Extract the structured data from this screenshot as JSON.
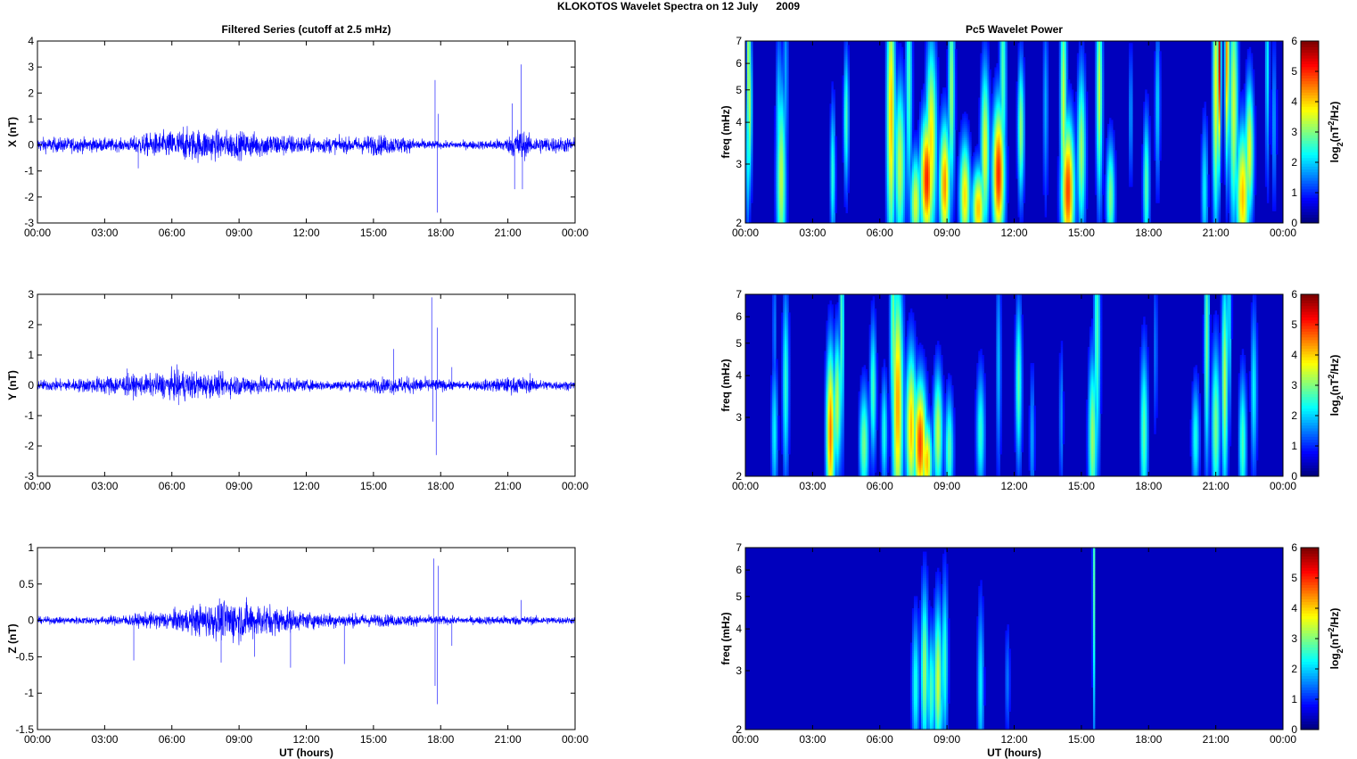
{
  "figure": {
    "title": "KLOKOTOS Wavelet Spectra on 12 July      2009"
  },
  "chart_data": [
    {
      "type": "line",
      "title": "Filtered Series (cutoff at 2.5 mHz)",
      "ylabel": "X (nT)",
      "xlabel": "",
      "xlim": [
        0,
        24
      ],
      "ylim": [
        -3,
        4
      ],
      "xticklabels": [
        "00:00",
        "03:00",
        "06:00",
        "09:00",
        "12:00",
        "15:00",
        "18:00",
        "21:00",
        "00:00"
      ],
      "yticks": [
        -3,
        -2,
        -1,
        0,
        1,
        2,
        3,
        4
      ],
      "line_color": "#0000ff",
      "envelope": [
        [
          0,
          0.25
        ],
        [
          2,
          0.25
        ],
        [
          4,
          0.2
        ],
        [
          4.5,
          0.35
        ],
        [
          6.2,
          0.5
        ],
        [
          7,
          0.55
        ],
        [
          9,
          0.45
        ],
        [
          10.5,
          0.4
        ],
        [
          12,
          0.3
        ],
        [
          14,
          0.25
        ],
        [
          15,
          0.35
        ],
        [
          16,
          0.3
        ],
        [
          17.5,
          0.15
        ],
        [
          18,
          0.12
        ],
        [
          20,
          0.15
        ],
        [
          21,
          0.25
        ],
        [
          21.5,
          0.6
        ],
        [
          22,
          0.3
        ],
        [
          24,
          0.25
        ]
      ],
      "spikes": [
        [
          4.5,
          -0.9
        ],
        [
          6.5,
          0.7
        ],
        [
          17.75,
          2.5
        ],
        [
          17.85,
          -2.6
        ],
        [
          17.9,
          1.2
        ],
        [
          21.2,
          1.6
        ],
        [
          21.3,
          -1.7
        ],
        [
          21.6,
          3.1
        ],
        [
          21.65,
          -1.7
        ],
        [
          24,
          0.5
        ]
      ]
    },
    {
      "type": "line",
      "ylabel": "Y (nT)",
      "xlabel": "",
      "xlim": [
        0,
        24
      ],
      "ylim": [
        -3,
        3
      ],
      "xticklabels": [
        "00:00",
        "03:00",
        "06:00",
        "09:00",
        "12:00",
        "15:00",
        "18:00",
        "21:00",
        "00:00"
      ],
      "yticks": [
        -3,
        -2,
        -1,
        0,
        1,
        2,
        3
      ],
      "line_color": "#0000ff",
      "envelope": [
        [
          0,
          0.15
        ],
        [
          2,
          0.2
        ],
        [
          3.5,
          0.3
        ],
        [
          5,
          0.3
        ],
        [
          6.5,
          0.45
        ],
        [
          7.5,
          0.35
        ],
        [
          9,
          0.3
        ],
        [
          10.5,
          0.25
        ],
        [
          12,
          0.15
        ],
        [
          14,
          0.15
        ],
        [
          15,
          0.2
        ],
        [
          16,
          0.25
        ],
        [
          17.5,
          0.2
        ],
        [
          19,
          0.1
        ],
        [
          20.5,
          0.2
        ],
        [
          21.5,
          0.25
        ],
        [
          22.5,
          0.15
        ],
        [
          24,
          0.12
        ]
      ],
      "spikes": [
        [
          4.0,
          0.55
        ],
        [
          6.3,
          -0.65
        ],
        [
          15.9,
          1.2
        ],
        [
          17.6,
          2.9
        ],
        [
          17.65,
          -1.2
        ],
        [
          17.8,
          -2.3
        ],
        [
          17.85,
          1.9
        ],
        [
          18.5,
          0.6
        ],
        [
          22,
          0.4
        ]
      ]
    },
    {
      "type": "line",
      "ylabel": "Z (nT)",
      "xlabel": "UT (hours)",
      "xlim": [
        0,
        24
      ],
      "ylim": [
        -1.5,
        1
      ],
      "xticklabels": [
        "00:00",
        "03:00",
        "06:00",
        "09:00",
        "12:00",
        "15:00",
        "18:00",
        "21:00",
        "00:00"
      ],
      "yticks": [
        -1.5,
        -1,
        -0.5,
        0,
        0.5,
        1
      ],
      "yticklabels": [
        "-1.5",
        "-1",
        "-0.5",
        "0",
        "0.5",
        "1"
      ],
      "line_color": "#0000ff",
      "envelope": [
        [
          0,
          0.04
        ],
        [
          3,
          0.05
        ],
        [
          4.5,
          0.08
        ],
        [
          6,
          0.12
        ],
        [
          7.5,
          0.2
        ],
        [
          8.7,
          0.26
        ],
        [
          10,
          0.2
        ],
        [
          11,
          0.15
        ],
        [
          12,
          0.1
        ],
        [
          14,
          0.08
        ],
        [
          16,
          0.07
        ],
        [
          17.5,
          0.06
        ],
        [
          19,
          0.04
        ],
        [
          21,
          0.06
        ],
        [
          22,
          0.05
        ],
        [
          24,
          0.04
        ]
      ],
      "spikes": [
        [
          4.3,
          -0.55
        ],
        [
          8.2,
          -0.58
        ],
        [
          9.7,
          -0.5
        ],
        [
          11.3,
          -0.65
        ],
        [
          13.7,
          -0.6
        ],
        [
          17.7,
          0.85
        ],
        [
          17.75,
          -0.9
        ],
        [
          17.85,
          -1.15
        ],
        [
          17.9,
          0.75
        ],
        [
          18.5,
          -0.35
        ],
        [
          21.6,
          0.28
        ]
      ]
    },
    {
      "type": "heatmap",
      "title": "Pc5 Wavelet Power",
      "ylabel": "freq (mHz)",
      "xlabel": "",
      "xlim": [
        0,
        24
      ],
      "ylim": [
        2,
        7
      ],
      "yscale": "log",
      "yticks": [
        2,
        3,
        4,
        5,
        6,
        7
      ],
      "xticklabels": [
        "00:00",
        "03:00",
        "06:00",
        "09:00",
        "12:00",
        "15:00",
        "18:00",
        "21:00",
        "00:00"
      ],
      "colorbar": {
        "label": "log2(nT2/Hz)",
        "ticks": [
          0,
          1,
          2,
          3,
          4,
          5,
          6
        ],
        "range": [
          0,
          6
        ],
        "colormap": "jet"
      },
      "blobs": [
        [
          0.15,
          6.2,
          3.2,
          0.1,
          0.9
        ],
        [
          0.1,
          3.4,
          2.2,
          0.1,
          0.6
        ],
        [
          0.2,
          4.5,
          3.0,
          0.1,
          0.6
        ],
        [
          1.6,
          2.7,
          3.2,
          0.22,
          0.7
        ],
        [
          1.5,
          3.8,
          2.0,
          0.15,
          0.7
        ],
        [
          1.8,
          5.5,
          1.5,
          0.12,
          0.8
        ],
        [
          3.9,
          2.8,
          2.3,
          0.12,
          0.5
        ],
        [
          4.5,
          4.1,
          2.5,
          0.12,
          0.5
        ],
        [
          6.5,
          4.2,
          4.0,
          0.2,
          1.0
        ],
        [
          6.9,
          3.0,
          3.2,
          0.25,
          0.6
        ],
        [
          7.3,
          5.3,
          2.5,
          0.15,
          0.9
        ],
        [
          7.6,
          2.3,
          3.4,
          0.25,
          0.35
        ],
        [
          8.3,
          3.5,
          3.8,
          0.25,
          0.7
        ],
        [
          8.1,
          2.7,
          5.0,
          0.3,
          0.45
        ],
        [
          8.9,
          2.6,
          4.3,
          0.25,
          0.45
        ],
        [
          9.2,
          5.0,
          3.0,
          0.15,
          0.8
        ],
        [
          9.8,
          2.4,
          3.8,
          0.25,
          0.4
        ],
        [
          10.4,
          2.2,
          4.0,
          0.3,
          0.3
        ],
        [
          10.7,
          3.3,
          3.5,
          0.2,
          0.6
        ],
        [
          11.3,
          2.8,
          5.0,
          0.28,
          0.5
        ],
        [
          11.5,
          5.5,
          2.6,
          0.15,
          0.9
        ],
        [
          12.3,
          3.8,
          3.0,
          0.15,
          0.5
        ],
        [
          13.4,
          4.5,
          1.5,
          0.12,
          0.7
        ],
        [
          14.4,
          2.5,
          4.8,
          0.3,
          0.5
        ],
        [
          14.2,
          4.5,
          3.3,
          0.15,
          0.9
        ],
        [
          15.0,
          3.3,
          3.0,
          0.2,
          0.6
        ],
        [
          15.8,
          5.0,
          3.2,
          0.15,
          0.8
        ],
        [
          16.3,
          2.4,
          2.8,
          0.2,
          0.4
        ],
        [
          17.2,
          4.2,
          1.4,
          0.1,
          0.5
        ],
        [
          17.9,
          2.6,
          2.6,
          0.15,
          0.5
        ],
        [
          18.4,
          4.5,
          1.8,
          0.12,
          0.6
        ],
        [
          20.5,
          2.5,
          2.0,
          0.15,
          0.5
        ],
        [
          21.0,
          5.0,
          3.6,
          0.15,
          1.0
        ],
        [
          21.15,
          6.5,
          5.6,
          0.08,
          0.8
        ],
        [
          21.5,
          6.5,
          4.5,
          0.1,
          0.8
        ],
        [
          21.8,
          4.5,
          3.3,
          0.2,
          0.9
        ],
        [
          22.2,
          2.4,
          4.0,
          0.3,
          0.5
        ],
        [
          22.5,
          3.3,
          3.5,
          0.2,
          0.5
        ],
        [
          23.3,
          6.0,
          2.0,
          0.1,
          0.8
        ],
        [
          23.6,
          4.0,
          1.4,
          0.12,
          0.6
        ]
      ]
    },
    {
      "type": "heatmap",
      "ylabel": "freq (mHz)",
      "xlabel": "",
      "xlim": [
        0,
        24
      ],
      "ylim": [
        2,
        7
      ],
      "yscale": "log",
      "yticks": [
        2,
        3,
        4,
        5,
        6,
        7
      ],
      "xticklabels": [
        "00:00",
        "03:00",
        "06:00",
        "09:00",
        "12:00",
        "15:00",
        "18:00",
        "21:00",
        "00:00"
      ],
      "colorbar": {
        "label": "log2(nT2/Hz)",
        "ticks": [
          0,
          1,
          2,
          3,
          4,
          5,
          6
        ],
        "range": [
          0,
          6
        ],
        "colormap": "jet"
      },
      "blobs": [
        [
          1.3,
          2.7,
          2.0,
          0.15,
          0.5
        ],
        [
          1.8,
          3.8,
          2.3,
          0.15,
          0.7
        ],
        [
          1.3,
          5.5,
          1.2,
          0.1,
          0.6
        ],
        [
          3.8,
          2.7,
          4.5,
          0.2,
          0.6
        ],
        [
          4.1,
          3.3,
          3.2,
          0.18,
          0.5
        ],
        [
          4.3,
          5.5,
          2.6,
          0.1,
          0.9
        ],
        [
          5.3,
          2.5,
          2.8,
          0.22,
          0.4
        ],
        [
          5.7,
          3.6,
          2.5,
          0.15,
          0.5
        ],
        [
          6.2,
          2.7,
          2.2,
          0.15,
          0.4
        ],
        [
          6.8,
          3.3,
          4.2,
          0.25,
          0.9
        ],
        [
          6.6,
          5.6,
          2.8,
          0.15,
          0.9
        ],
        [
          7.4,
          2.8,
          4.0,
          0.25,
          0.55
        ],
        [
          7.8,
          2.5,
          4.8,
          0.3,
          0.45
        ],
        [
          8.1,
          2.2,
          4.0,
          0.25,
          0.3
        ],
        [
          8.6,
          2.7,
          3.2,
          0.22,
          0.45
        ],
        [
          9.1,
          2.4,
          2.6,
          0.2,
          0.4
        ],
        [
          10.5,
          2.7,
          2.3,
          0.2,
          0.45
        ],
        [
          11.3,
          4.3,
          1.6,
          0.12,
          0.8
        ],
        [
          12.2,
          3.8,
          2.6,
          0.15,
          0.6
        ],
        [
          12.8,
          2.6,
          1.5,
          0.12,
          0.5
        ],
        [
          14.1,
          3.0,
          1.4,
          0.1,
          0.5
        ],
        [
          15.5,
          2.6,
          3.0,
          0.2,
          0.6
        ],
        [
          15.7,
          5.2,
          2.5,
          0.15,
          1.0
        ],
        [
          17.8,
          2.7,
          2.6,
          0.18,
          0.6
        ],
        [
          18.3,
          4.8,
          1.2,
          0.1,
          0.6
        ],
        [
          20.1,
          2.6,
          2.2,
          0.18,
          0.4
        ],
        [
          20.6,
          5.0,
          2.8,
          0.12,
          0.9
        ],
        [
          21.0,
          2.8,
          2.8,
          0.2,
          0.6
        ],
        [
          21.4,
          3.8,
          3.2,
          0.15,
          0.8
        ],
        [
          21.6,
          6.2,
          2.0,
          0.1,
          0.8
        ],
        [
          22.2,
          2.5,
          2.5,
          0.18,
          0.5
        ],
        [
          22.7,
          3.6,
          2.0,
          0.15,
          0.6
        ]
      ]
    },
    {
      "type": "heatmap",
      "ylabel": "freq (mHz)",
      "xlabel": "UT (hours)",
      "xlim": [
        0,
        24
      ],
      "ylim": [
        2,
        7
      ],
      "yscale": "log",
      "yticks": [
        2,
        3,
        4,
        5,
        6,
        7
      ],
      "xticklabels": [
        "00:00",
        "03:00",
        "06:00",
        "09:00",
        "12:00",
        "15:00",
        "18:00",
        "21:00",
        "00:00"
      ],
      "colorbar": {
        "label": "log2(nT2/Hz)",
        "ticks": [
          0,
          1,
          2,
          3,
          4,
          5,
          6
        ],
        "range": [
          0,
          6
        ],
        "colormap": "jet"
      },
      "blobs": [
        [
          7.6,
          2.7,
          2.2,
          0.18,
          0.5
        ],
        [
          8.0,
          3.0,
          3.0,
          0.18,
          0.6
        ],
        [
          8.3,
          2.6,
          2.5,
          0.18,
          0.45
        ],
        [
          8.6,
          2.8,
          3.3,
          0.2,
          0.55
        ],
        [
          8.9,
          3.2,
          2.4,
          0.15,
          0.6
        ],
        [
          8.7,
          2.3,
          2.0,
          0.2,
          0.3
        ],
        [
          10.5,
          2.7,
          2.0,
          0.15,
          0.6
        ],
        [
          11.7,
          2.8,
          1.2,
          0.12,
          0.4
        ],
        [
          15.55,
          5.5,
          2.5,
          0.06,
          1.2
        ]
      ]
    }
  ]
}
